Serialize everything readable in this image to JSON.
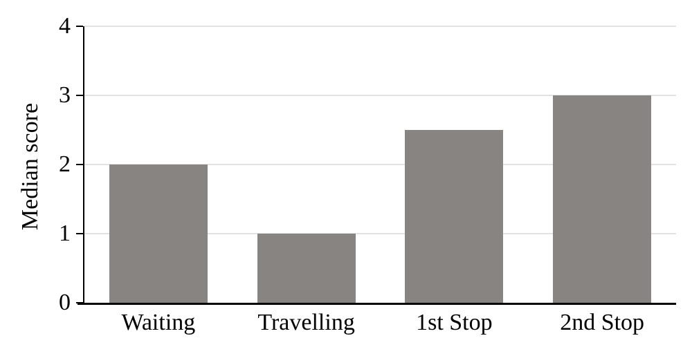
{
  "chart_data": {
    "type": "bar",
    "categories": [
      "Waiting",
      "Travelling",
      "1st Stop",
      "2nd Stop"
    ],
    "values": [
      2,
      1,
      2.5,
      3
    ],
    "title": "",
    "xlabel": "",
    "ylabel": "Median score",
    "ylim": [
      0,
      4
    ],
    "yticks": [
      0,
      1,
      2,
      3,
      4
    ],
    "grid": "horizontal",
    "legend": "none",
    "bar_color": "#878482",
    "gridline_color": "#e2e2e2",
    "axis_color": "#000000"
  }
}
